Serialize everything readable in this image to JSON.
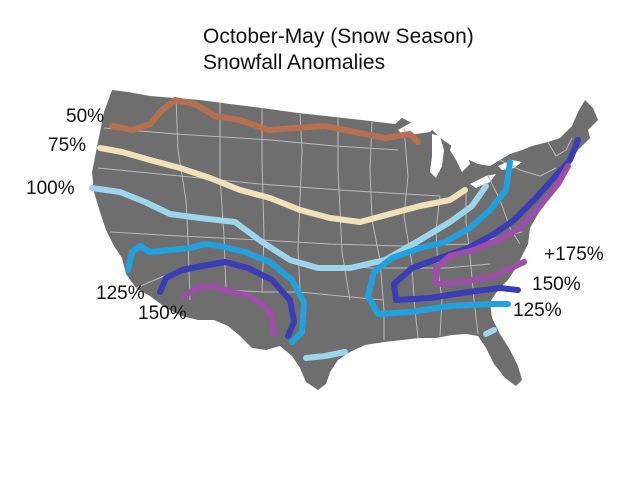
{
  "title": {
    "line1": "October-May (Snow Season)",
    "line2": "Snowfall Anomalies"
  },
  "contours": [
    {
      "id": "c50",
      "color": "#b5714f"
    },
    {
      "id": "c75",
      "color": "#efe1b8"
    },
    {
      "id": "c100",
      "color": "#9dd6ea"
    },
    {
      "id": "c125",
      "color": "#21a2df"
    },
    {
      "id": "c150",
      "color": "#3a3db5"
    },
    {
      "id": "c175",
      "color": "#9b4fa7"
    }
  ],
  "labels": {
    "p50": "50%",
    "p75": "75%",
    "p100": "100%",
    "p125_west": "125%",
    "p150_west": "150%",
    "p175_east": "+175%",
    "p150_east": "150%",
    "p125_east": "125%"
  },
  "colors": {
    "land": "#6e6e6e",
    "borders": "#b9b9b9",
    "background": "#ffffff"
  }
}
